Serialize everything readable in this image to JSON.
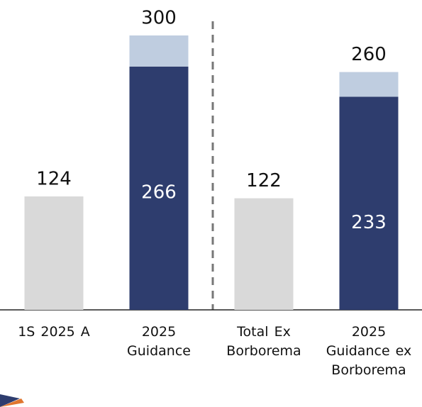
{
  "chart_data": {
    "type": "stacked_bar",
    "categories": [
      "1S  2025 A",
      "2025 Guidance",
      "Total Ex Borborema",
      "2025 Guidance ex Borborema"
    ],
    "series": [
      {
        "color": "#d9d9d9",
        "values": [
          124,
          null,
          122,
          null
        ],
        "labels": "above"
      },
      {
        "color": "#2e3d6e",
        "values": [
          null,
          266,
          null,
          233
        ],
        "labels": "inside"
      },
      {
        "color": "#bfcde0",
        "values": [
          null,
          34,
          null,
          27
        ]
      }
    ],
    "totals": [
      null,
      300,
      null,
      260
    ],
    "ylim": [
      0,
      300
    ]
  }
}
